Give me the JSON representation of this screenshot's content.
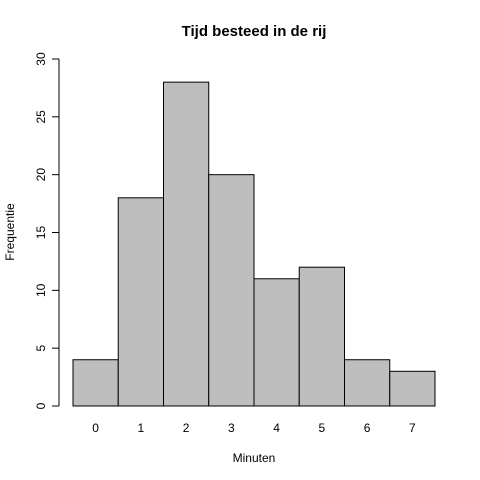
{
  "chart_data": {
    "type": "bar",
    "title": "Tijd besteed in de rij",
    "xlabel": "Minuten",
    "ylabel": "Frequentie",
    "categories": [
      "0",
      "1",
      "2",
      "3",
      "4",
      "5",
      "6",
      "7"
    ],
    "values": [
      4,
      18,
      28,
      20,
      11,
      12,
      4,
      3
    ],
    "ylim": [
      0,
      30
    ],
    "yticks": [
      0,
      5,
      10,
      15,
      20,
      25,
      30
    ],
    "grid": false,
    "colors": {
      "bar_fill": "#bebebe",
      "bar_stroke": "#000000"
    }
  }
}
